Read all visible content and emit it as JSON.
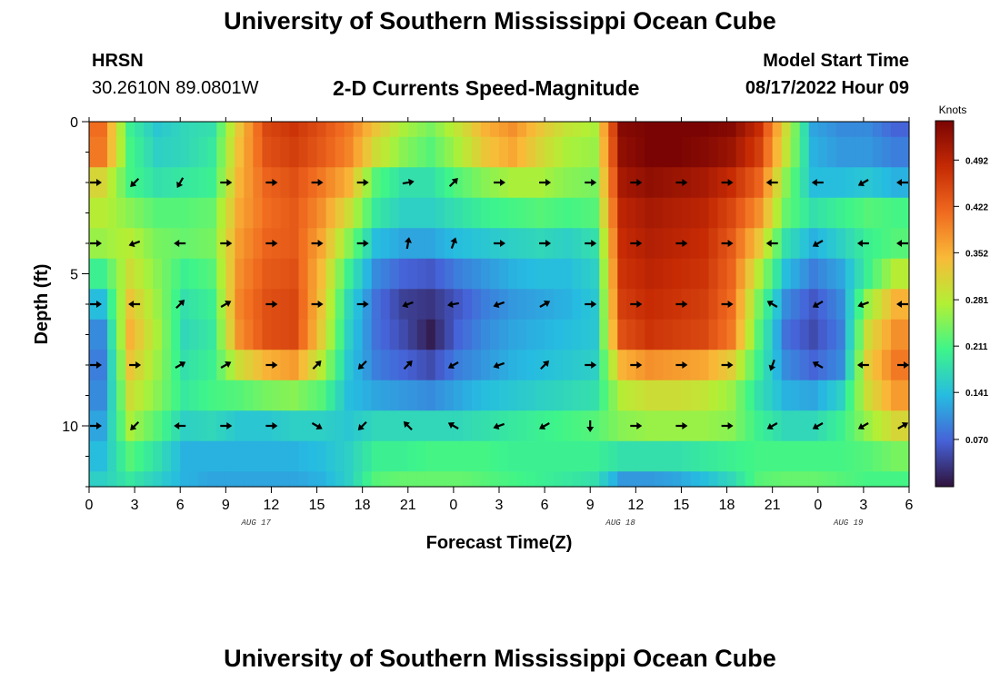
{
  "header": {
    "title": "University of Southern Mississippi Ocean Cube",
    "station": "HRSN",
    "location": "30.2610N  89.0801W",
    "model_start_label": "Model Start Time",
    "model_start_value": "08/17/2022 Hour 09"
  },
  "footer": {
    "title": "University of Southern Mississippi Ocean Cube"
  },
  "colors": {
    "colormap": [
      "#30123b",
      "#4662d8",
      "#26bce1",
      "#3ef58a",
      "#b2f035",
      "#f9ba38",
      "#f06a1f",
      "#c52a04",
      "#7a0403"
    ]
  },
  "chart_data": {
    "type": "heatmap",
    "title": "2-D Currents Speed-Magnitude",
    "xlabel": "Forecast Time(Z)",
    "ylabel": "Depth (ft)",
    "colorbar_label": "Knots",
    "colorbar_ticks": [
      "0.492",
      "0.422",
      "0.352",
      "0.281",
      "0.211",
      "0.141",
      "0.070"
    ],
    "colorbar_tick_values": [
      0.492,
      0.422,
      0.352,
      0.281,
      0.211,
      0.141,
      0.07
    ],
    "value_range": [
      0.0,
      0.55
    ],
    "x_range": [
      0,
      54
    ],
    "y_range": [
      0,
      12
    ],
    "x_tick_labels": [
      "0",
      "3",
      "6",
      "9",
      "12",
      "15",
      "18",
      "21",
      "0",
      "3",
      "6",
      "9",
      "12",
      "15",
      "18",
      "21",
      "0",
      "3",
      "6"
    ],
    "y_tick_labels": [
      "0",
      "5",
      "10"
    ],
    "y_tick_values": [
      0,
      5,
      10
    ],
    "date_labels": [
      {
        "label": "AUG 17",
        "hour": 11
      },
      {
        "label": "AUG 18",
        "hour": 35
      },
      {
        "label": "AUG 19",
        "hour": 50
      }
    ],
    "arrow_depths": [
      2,
      4,
      6,
      8,
      10
    ],
    "arrow_hours": [
      0,
      3,
      6,
      9,
      12,
      15,
      18,
      21,
      24,
      27,
      30,
      33,
      36,
      39,
      42,
      45,
      48,
      51,
      54
    ],
    "arrow_angles_deg": [
      [
        0,
        135,
        120,
        0,
        0,
        0,
        0,
        -10,
        -45,
        0,
        0,
        0,
        0,
        0,
        0,
        180,
        180,
        150,
        180
      ],
      [
        0,
        160,
        180,
        0,
        0,
        0,
        0,
        -80,
        -70,
        0,
        0,
        0,
        0,
        0,
        0,
        180,
        150,
        180,
        180
      ],
      [
        0,
        180,
        -45,
        -30,
        0,
        0,
        0,
        160,
        170,
        160,
        -30,
        0,
        0,
        0,
        0,
        -150,
        150,
        160,
        180
      ],
      [
        0,
        0,
        -30,
        -30,
        0,
        -45,
        135,
        -45,
        150,
        160,
        -45,
        0,
        0,
        0,
        0,
        110,
        -150,
        180,
        0
      ],
      [
        0,
        135,
        180,
        0,
        0,
        30,
        135,
        -135,
        -150,
        160,
        150,
        90,
        0,
        0,
        0,
        150,
        150,
        150,
        -30
      ]
    ],
    "heatmap_rows": [
      {
        "depth_from": 0.0,
        "depth_to": 0.5,
        "values": [
          0.41,
          0.2,
          0.15,
          0.17,
          0.18,
          0.33,
          0.45,
          0.47,
          0.44,
          0.4,
          0.33,
          0.27,
          0.24,
          0.29,
          0.35,
          0.38,
          0.33,
          0.29,
          0.27,
          0.54,
          0.55,
          0.55,
          0.55,
          0.54,
          0.48,
          0.3,
          0.12,
          0.1,
          0.1,
          0.07
        ]
      },
      {
        "depth_from": 0.5,
        "depth_to": 1.5,
        "values": [
          0.4,
          0.21,
          0.16,
          0.17,
          0.19,
          0.34,
          0.44,
          0.46,
          0.43,
          0.39,
          0.3,
          0.25,
          0.22,
          0.27,
          0.33,
          0.36,
          0.31,
          0.27,
          0.26,
          0.53,
          0.55,
          0.55,
          0.54,
          0.52,
          0.46,
          0.29,
          0.13,
          0.11,
          0.11,
          0.09
        ]
      },
      {
        "depth_from": 1.5,
        "depth_to": 2.5,
        "values": [
          0.31,
          0.21,
          0.18,
          0.19,
          0.2,
          0.35,
          0.42,
          0.44,
          0.4,
          0.35,
          0.22,
          0.18,
          0.18,
          0.22,
          0.25,
          0.27,
          0.27,
          0.25,
          0.24,
          0.51,
          0.53,
          0.52,
          0.51,
          0.48,
          0.42,
          0.25,
          0.14,
          0.14,
          0.15,
          0.13
        ]
      },
      {
        "depth_from": 2.5,
        "depth_to": 3.5,
        "values": [
          0.28,
          0.25,
          0.22,
          0.22,
          0.23,
          0.36,
          0.41,
          0.43,
          0.38,
          0.3,
          0.19,
          0.16,
          0.16,
          0.18,
          0.2,
          0.21,
          0.22,
          0.21,
          0.22,
          0.49,
          0.51,
          0.5,
          0.49,
          0.45,
          0.38,
          0.23,
          0.18,
          0.2,
          0.22,
          0.21
        ]
      },
      {
        "depth_from": 3.5,
        "depth_to": 4.5,
        "values": [
          0.26,
          0.28,
          0.24,
          0.23,
          0.24,
          0.37,
          0.42,
          0.43,
          0.36,
          0.25,
          0.14,
          0.12,
          0.12,
          0.14,
          0.15,
          0.16,
          0.17,
          0.16,
          0.18,
          0.48,
          0.5,
          0.49,
          0.48,
          0.43,
          0.33,
          0.18,
          0.13,
          0.16,
          0.2,
          0.22
        ]
      },
      {
        "depth_from": 4.5,
        "depth_to": 5.5,
        "values": [
          0.2,
          0.3,
          0.25,
          0.2,
          0.22,
          0.38,
          0.43,
          0.44,
          0.34,
          0.2,
          0.1,
          0.07,
          0.06,
          0.09,
          0.11,
          0.13,
          0.14,
          0.14,
          0.16,
          0.47,
          0.49,
          0.48,
          0.47,
          0.42,
          0.28,
          0.14,
          0.09,
          0.12,
          0.2,
          0.28
        ]
      },
      {
        "depth_from": 5.5,
        "depth_to": 6.5,
        "values": [
          0.14,
          0.33,
          0.26,
          0.18,
          0.2,
          0.39,
          0.44,
          0.45,
          0.33,
          0.17,
          0.08,
          0.04,
          0.03,
          0.06,
          0.09,
          0.11,
          0.12,
          0.13,
          0.15,
          0.46,
          0.48,
          0.47,
          0.46,
          0.41,
          0.24,
          0.1,
          0.06,
          0.1,
          0.26,
          0.35
        ]
      },
      {
        "depth_from": 6.5,
        "depth_to": 7.5,
        "values": [
          0.1,
          0.35,
          0.27,
          0.17,
          0.19,
          0.38,
          0.44,
          0.45,
          0.32,
          0.16,
          0.08,
          0.05,
          0.01,
          0.07,
          0.1,
          0.12,
          0.13,
          0.14,
          0.15,
          0.44,
          0.47,
          0.46,
          0.45,
          0.4,
          0.22,
          0.08,
          0.05,
          0.09,
          0.3,
          0.38
        ]
      },
      {
        "depth_from": 7.5,
        "depth_to": 8.5,
        "values": [
          0.09,
          0.33,
          0.26,
          0.18,
          0.2,
          0.3,
          0.35,
          0.37,
          0.28,
          0.15,
          0.09,
          0.07,
          0.05,
          0.09,
          0.11,
          0.13,
          0.14,
          0.15,
          0.16,
          0.35,
          0.38,
          0.37,
          0.36,
          0.32,
          0.2,
          0.1,
          0.07,
          0.1,
          0.32,
          0.4
        ]
      },
      {
        "depth_from": 8.5,
        "depth_to": 9.5,
        "values": [
          0.1,
          0.3,
          0.25,
          0.19,
          0.21,
          0.22,
          0.24,
          0.25,
          0.22,
          0.14,
          0.12,
          0.11,
          0.1,
          0.12,
          0.14,
          0.15,
          0.16,
          0.17,
          0.18,
          0.28,
          0.3,
          0.3,
          0.29,
          0.26,
          0.18,
          0.13,
          0.12,
          0.16,
          0.3,
          0.37
        ]
      },
      {
        "depth_from": 9.5,
        "depth_to": 10.5,
        "values": [
          0.12,
          0.27,
          0.22,
          0.16,
          0.17,
          0.15,
          0.15,
          0.16,
          0.16,
          0.15,
          0.17,
          0.17,
          0.17,
          0.17,
          0.18,
          0.19,
          0.2,
          0.21,
          0.22,
          0.25,
          0.26,
          0.26,
          0.26,
          0.25,
          0.2,
          0.17,
          0.17,
          0.2,
          0.26,
          0.31
        ]
      },
      {
        "depth_from": 10.5,
        "depth_to": 11.5,
        "values": [
          0.14,
          0.22,
          0.18,
          0.13,
          0.13,
          0.13,
          0.13,
          0.13,
          0.14,
          0.16,
          0.2,
          0.2,
          0.21,
          0.21,
          0.21,
          0.2,
          0.2,
          0.2,
          0.2,
          0.18,
          0.18,
          0.18,
          0.19,
          0.2,
          0.21,
          0.21,
          0.21,
          0.21,
          0.22,
          0.24
        ]
      },
      {
        "depth_from": 11.5,
        "depth_to": 12.0,
        "values": [
          0.16,
          0.19,
          0.16,
          0.13,
          0.12,
          0.12,
          0.12,
          0.12,
          0.13,
          0.16,
          0.22,
          0.23,
          0.23,
          0.23,
          0.22,
          0.21,
          0.2,
          0.19,
          0.18,
          0.11,
          0.11,
          0.12,
          0.14,
          0.17,
          0.22,
          0.23,
          0.23,
          0.22,
          0.21,
          0.21
        ]
      }
    ]
  }
}
